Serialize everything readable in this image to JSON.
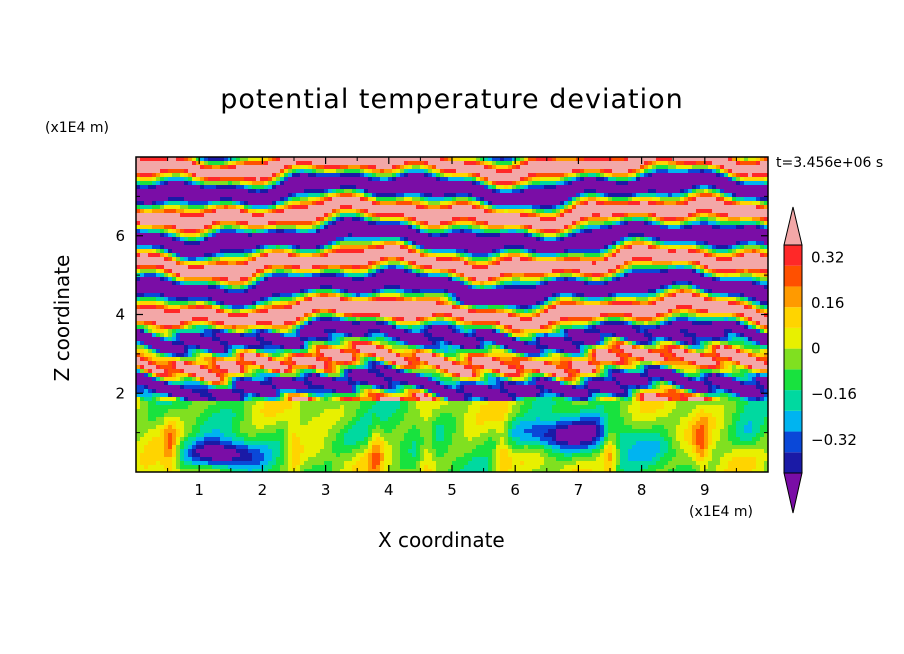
{
  "chart_data": {
    "type": "heatmap",
    "title": "potential temperature deviation",
    "xlabel": "X coordinate",
    "ylabel": "Z coordinate",
    "x_units": "(x1E4 m)",
    "y_units": "(x1E4 m)",
    "time_label": "t=3.456e+06 s",
    "xlim": [
      0,
      10
    ],
    "ylim": [
      0,
      8
    ],
    "x_ticks": [
      "1",
      "2",
      "3",
      "4",
      "5",
      "6",
      "7",
      "8",
      "9"
    ],
    "y_ticks": [
      "2",
      "4",
      "6"
    ],
    "colorbar": {
      "levels": [
        -0.48,
        -0.4,
        -0.32,
        -0.24,
        -0.16,
        -0.08,
        0,
        0.08,
        0.16,
        0.24,
        0.32,
        0.4,
        0.48
      ],
      "tick_labels": [
        "0.32",
        "0.16",
        "0",
        "−0.16",
        "−0.32"
      ],
      "tick_values": [
        0.32,
        0.16,
        0,
        -0.16,
        -0.32
      ],
      "colors": [
        "#7a0da6",
        "#1a1aa6",
        "#0a48d8",
        "#00b4f0",
        "#00d9a0",
        "#18e23e",
        "#80e020",
        "#e8f000",
        "#ffd400",
        "#ff9a00",
        "#ff5000",
        "#ff2828",
        "#f3a7a7"
      ],
      "extend": "both"
    }
  }
}
